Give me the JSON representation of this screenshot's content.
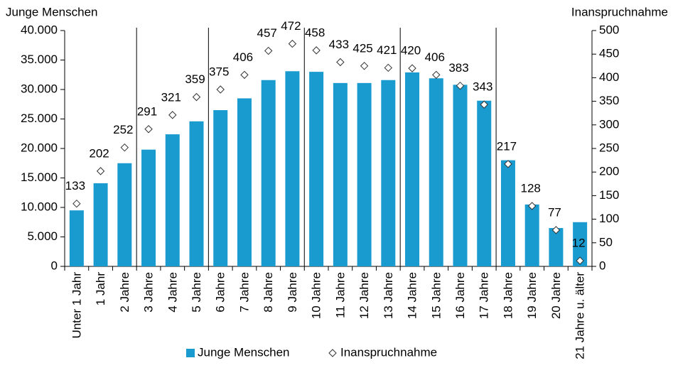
{
  "chart_data": {
    "type": "bar",
    "y_axis_label": "Junge Menschen",
    "y2_axis_label": "Inanspruchnahme",
    "categories": [
      "Unter 1 Jahr",
      "1 Jahr",
      "2 Jahre",
      "3 Jahre",
      "4 Jahre",
      "5 Jahre",
      "6 Jahre",
      "7 Jahre",
      "8 Jahre",
      "9 Jahre",
      "10 Jahre",
      "11 Jahre",
      "12 Jahre",
      "13 Jahre",
      "14 Jahre",
      "15 Jahre",
      "16 Jahre",
      "17 Jahre",
      "18 Jahre",
      "19 Jahre",
      "20 Jahre",
      "21 Jahre u. älter"
    ],
    "series": [
      {
        "name": "Junge Menschen",
        "color": "#1a9bd0",
        "type": "bar",
        "values": [
          9500,
          14100,
          17500,
          19800,
          22400,
          24600,
          26500,
          28500,
          31600,
          33100,
          33000,
          31100,
          31100,
          31600,
          32900,
          31900,
          30800,
          28100,
          18000,
          10500,
          6500,
          7500
        ]
      },
      {
        "name": "Inanspruchnahme",
        "color": "#333333",
        "type": "scatter",
        "axis": "y2",
        "values": [
          133,
          202,
          252,
          291,
          321,
          359,
          375,
          406,
          457,
          472,
          458,
          433,
          425,
          421,
          420,
          406,
          383,
          343,
          217,
          128,
          77,
          12
        ]
      }
    ],
    "ylim": [
      0,
      40000
    ],
    "yticks": [
      0,
      {
        "value": 5000,
        "label": "5.000"
      },
      {
        "value": 10000,
        "label": "10.000"
      },
      {
        "value": 15000,
        "label": "15.000"
      },
      {
        "value": 20000,
        "label": "20.000"
      },
      {
        "value": 25000,
        "label": "25.000"
      },
      {
        "value": 30000,
        "label": "30.000"
      },
      {
        "value": 35000,
        "label": "35.000"
      },
      {
        "value": 40000,
        "label": "40.000"
      }
    ],
    "y2lim": [
      0,
      500
    ],
    "y2ticks": [
      0,
      50,
      100,
      150,
      200,
      250,
      300,
      350,
      400,
      450,
      500
    ],
    "grid": false,
    "legend": "bottom"
  }
}
